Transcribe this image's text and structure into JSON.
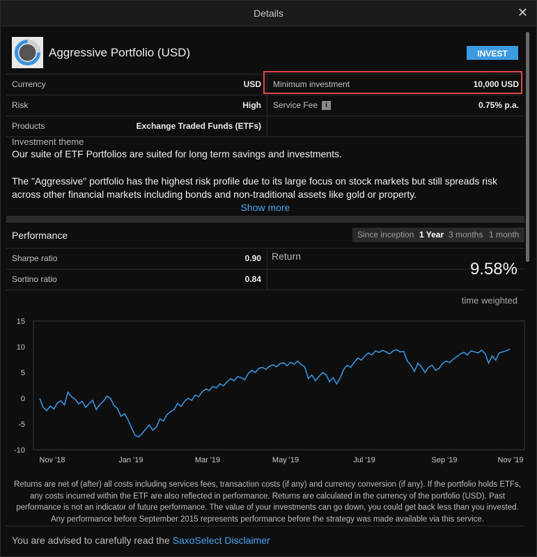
{
  "dialog": {
    "title": "Details",
    "close_icon": "close-icon"
  },
  "portfolio": {
    "name": "Aggressive Portfolio (USD)",
    "invest_label": "INVEST",
    "accent": "#3b9ae0"
  },
  "details": {
    "left": [
      {
        "label": "Currency",
        "value": "USD"
      },
      {
        "label": "Risk",
        "value": "High"
      },
      {
        "label": "Products",
        "value": "Exchange Traded Funds (ETFs)"
      }
    ],
    "right": [
      {
        "label": "Minimum investment",
        "value": "10,000 USD"
      },
      {
        "label": "Service Fee",
        "value": "0.75% p.a.",
        "info_icon": "i"
      }
    ]
  },
  "theme": {
    "label": "Investment theme",
    "p1": "Our suite of ETF Portfolios are suited for long term savings and investments.",
    "p2": "The \"Aggressive\" portfolio has the highest risk profile due to its large focus on stock markets but still spreads risk across other financial markets including bonds and non-traditional assets like gold or property.",
    "show_more": "Show more"
  },
  "performance": {
    "title": "Performance",
    "tabs": [
      "Since inception",
      "1 Year",
      "3 months",
      "1 month"
    ],
    "active_tab": "1 Year",
    "ratios": [
      {
        "label": "Sharpe ratio",
        "value": "0.90"
      },
      {
        "label": "Sortino ratio",
        "value": "0.84"
      }
    ],
    "return_label": "Return",
    "return_value": "9.58%",
    "return_note": "time weighted"
  },
  "chart_data": {
    "type": "line",
    "title": "",
    "xlabel": "",
    "ylabel": "",
    "ylim": [
      -10,
      15
    ],
    "yticks": [
      "15",
      "10",
      "5",
      "0",
      "-5",
      "-10"
    ],
    "xticks": [
      "Nov '18",
      "Jan '19",
      "Mar '19",
      "May '19",
      "Jul '19",
      "Sep '19",
      "Nov '19"
    ],
    "line_color": "#3a93dc",
    "series": [
      {
        "values": [
          0,
          -1.8,
          -2.4,
          -1.5,
          -2.1,
          -0.9,
          -0.5,
          -1.3,
          1.2,
          0.3,
          -0.2,
          -1.1,
          -0.6,
          -1.8,
          -1.0,
          -0.4,
          -2.2,
          -1.2,
          -0.6,
          0.4,
          0.0,
          -1.4,
          -2.0,
          -3.5,
          -3.0,
          -4.2,
          -5.8,
          -7.2,
          -7.5,
          -6.8,
          -6.0,
          -5.2,
          -6.2,
          -5.6,
          -4.0,
          -4.4,
          -3.2,
          -2.6,
          -2.2,
          -1.0,
          -1.6,
          -0.6,
          0.0,
          -0.4,
          0.6,
          0.3,
          1.3,
          1.8,
          1.5,
          2.3,
          2.0,
          2.8,
          2.4,
          3.2,
          3.8,
          3.4,
          4.2,
          4.0,
          3.6,
          4.8,
          5.4,
          5.0,
          5.8,
          6.0,
          5.6,
          6.2,
          6.5,
          6.1,
          6.7,
          6.9,
          6.3,
          7.0,
          6.6,
          7.2,
          6.5,
          6.1,
          3.8,
          4.5,
          3.4,
          4.2,
          5.0,
          4.6,
          3.2,
          4.0,
          2.8,
          3.9,
          5.6,
          6.4,
          6.0,
          7.0,
          7.8,
          7.4,
          8.2,
          8.8,
          8.4,
          9.2,
          8.9,
          9.3,
          9.0,
          8.6,
          9.2,
          9.4,
          9.0,
          9.1,
          7.2,
          6.4,
          5.2,
          6.8,
          6.1,
          5.0,
          6.0,
          6.4,
          5.4,
          5.8,
          6.8,
          7.2,
          6.9,
          7.6,
          8.1,
          8.6,
          8.9,
          8.4,
          9.2,
          9.0,
          8.8,
          9.3,
          8.7,
          6.8,
          8.2,
          7.4,
          8.8,
          9.0,
          9.2,
          9.58
        ]
      }
    ],
    "grid": false,
    "legend": "none"
  },
  "footnote": "Returns are net of (after) all costs including services fees, transaction costs (if any) and currency conversion (if any). If the portfolio holds ETFs, any costs incurred within the ETF are also reflected in performance. Returns are calculated in the currency of the portfolio (USD). Past performance is not an indicator of future performance. The value of your investments can go down, you could get back less than you invested. Any performance before September 2015 represents performance before the strategy was made available via this service.",
  "disclaimer": {
    "text": "You are advised to carefully read the ",
    "link": "SaxoSelect Disclaimer"
  }
}
